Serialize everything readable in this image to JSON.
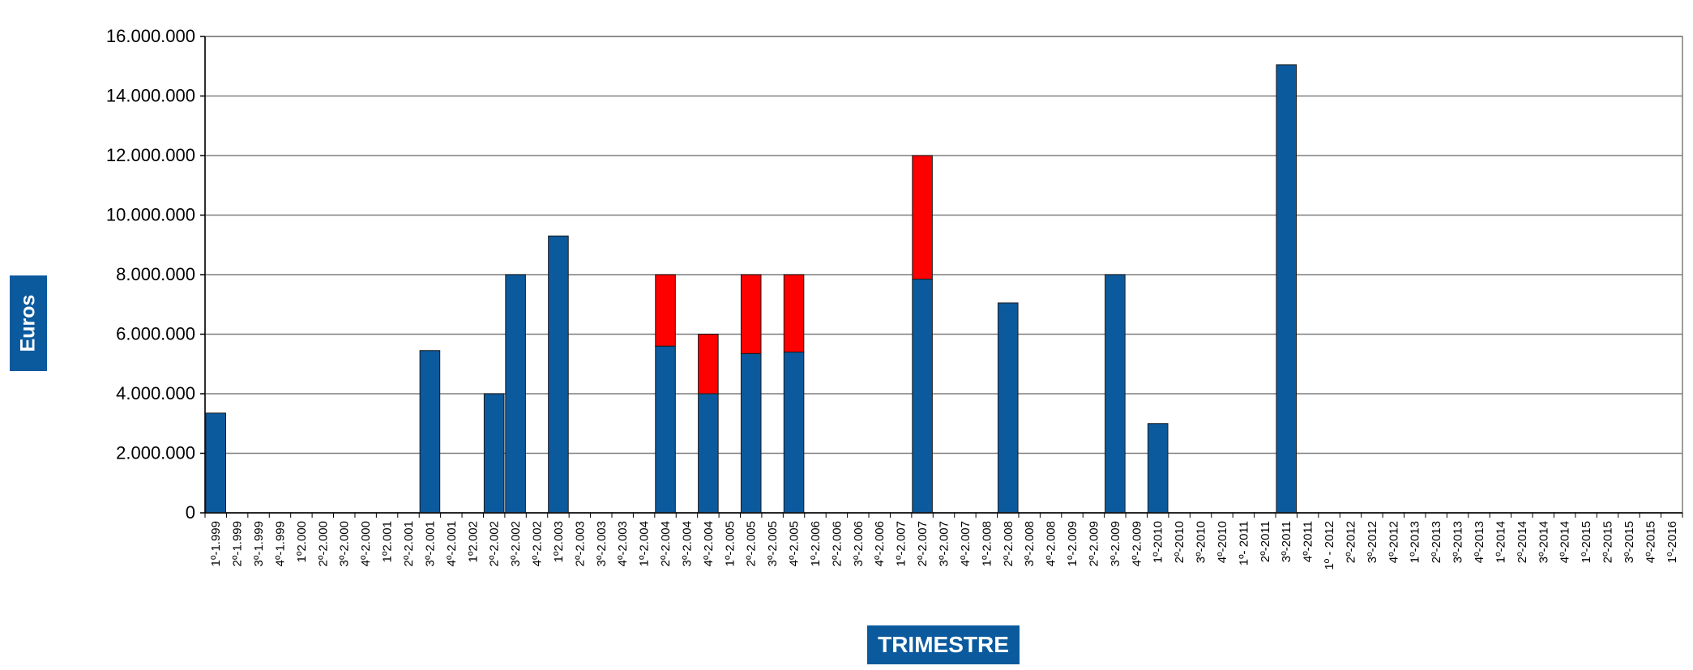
{
  "chart_data": {
    "type": "bar",
    "stacked": true,
    "title": "",
    "xlabel": "TRIMESTRE",
    "ylabel": "Euros",
    "ylim": [
      0,
      16000000
    ],
    "yticks": [
      0,
      2000000,
      4000000,
      6000000,
      8000000,
      10000000,
      12000000,
      14000000,
      16000000
    ],
    "ytick_labels": [
      "0",
      "2.000.000",
      "4.000.000",
      "6.000.000",
      "8.000.000",
      "10.000.000",
      "12.000.000",
      "14.000.000",
      "16.000.000"
    ],
    "grid": true,
    "legend": "none",
    "categories": [
      "1º-1.999",
      "2º-1.999",
      "3º-1.999",
      "4º-1.999",
      "1º2.000",
      "2º-2.000",
      "3º-2.000",
      "4º-2.000",
      "1º2.001",
      "2º-2.001",
      "3º-2.001",
      "4º-2.001",
      "1º2.002",
      "2º-2.002",
      "3º-2.002",
      "4º-2.002",
      "1º2.003",
      "2º-2.003",
      "3º-2.003",
      "4º-2.003",
      "1º-2.004",
      "2º-2.004",
      "3º-2.004",
      "4º-2.004",
      "1º-2.005",
      "2º-2.005",
      "3º-2.005",
      "4º-2.005",
      "1º-2.006",
      "2º-2.006",
      "3º-2.006",
      "4º-2.006",
      "1º-2.007",
      "2º-2.007",
      "3º-2.007",
      "4º-2.007",
      "1º-2.008",
      "2º-2.008",
      "3º-2.008",
      "4º-2.008",
      "1º-2.009",
      "2º-2.009",
      "3º-2.009",
      "4º-2.009",
      "1º-2010",
      "2º-2010",
      "3º-2010",
      "4º-2010",
      "1º- 2011",
      "2º-2011",
      "3º-2011",
      "4º-2011",
      "1º - 2012",
      "2º-2012",
      "3º-2012",
      "4º-2012",
      "1º-2013",
      "2º-2013",
      "3º-2013",
      "4º-2013",
      "1º-2014",
      "2º-2014",
      "3º-2014",
      "4º-2014",
      "1º-2015",
      "2º-2015",
      "3º-2015",
      "4º-2015",
      "1º-2016"
    ],
    "series": [
      {
        "color": "#0c5a9e",
        "values": [
          3350000,
          0,
          0,
          0,
          0,
          0,
          0,
          0,
          0,
          0,
          5450000,
          0,
          0,
          4000000,
          8000000,
          0,
          9300000,
          0,
          0,
          0,
          0,
          5600000,
          0,
          4000000,
          0,
          5350000,
          0,
          5400000,
          0,
          0,
          0,
          0,
          0,
          7850000,
          0,
          0,
          0,
          7050000,
          0,
          0,
          0,
          0,
          8000000,
          0,
          3000000,
          0,
          0,
          0,
          0,
          0,
          15050000,
          0,
          0,
          0,
          0,
          0,
          0,
          0,
          0,
          0,
          0,
          0,
          0,
          0,
          0,
          0,
          0,
          0,
          0
        ]
      },
      {
        "color": "#ff0000",
        "values": [
          0,
          0,
          0,
          0,
          0,
          0,
          0,
          0,
          0,
          0,
          0,
          0,
          0,
          0,
          0,
          0,
          0,
          0,
          0,
          0,
          0,
          2400000,
          0,
          2000000,
          0,
          2650000,
          0,
          2600000,
          0,
          0,
          0,
          0,
          0,
          4150000,
          0,
          0,
          0,
          0,
          0,
          0,
          0,
          0,
          0,
          0,
          0,
          0,
          0,
          0,
          0,
          0,
          0,
          0,
          0,
          0,
          0,
          0,
          0,
          0,
          0,
          0,
          0,
          0,
          0,
          0,
          0,
          0,
          0,
          0,
          0
        ]
      }
    ]
  }
}
